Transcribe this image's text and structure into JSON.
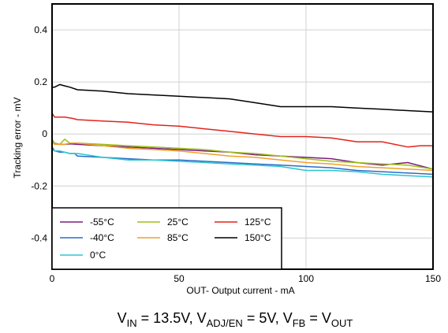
{
  "chart_data": {
    "type": "line",
    "xlabel_sub": "OUT",
    "xlabel_rest": "- Output current - mA",
    "ylabel": "Tracking error - mV",
    "xlim": [
      0,
      150
    ],
    "ylim": [
      -0.52,
      0.5
    ],
    "x_ticks": [
      0,
      50,
      100,
      150
    ],
    "x_tick_labels": [
      "0",
      "50",
      "100",
      "150"
    ],
    "y_ticks": [
      0.4,
      0.2,
      0,
      -0.2,
      -0.4
    ],
    "y_tick_labels": [
      "0.4",
      "0.2",
      "0",
      "-0.2",
      "-0.4"
    ],
    "grid": true,
    "legend_placement": "bottom-left",
    "series": [
      {
        "name": "-55°C",
        "color": "#7a1e7a",
        "x": [
          0,
          1,
          3,
          5,
          7,
          10,
          20,
          30,
          40,
          50,
          60,
          70,
          80,
          90,
          100,
          110,
          120,
          130,
          140,
          150
        ],
        "y": [
          -0.03,
          -0.035,
          -0.04,
          -0.04,
          -0.038,
          -0.04,
          -0.045,
          -0.05,
          -0.055,
          -0.06,
          -0.065,
          -0.07,
          -0.08,
          -0.085,
          -0.09,
          -0.095,
          -0.11,
          -0.12,
          -0.11,
          -0.135
        ]
      },
      {
        "name": "-40°C",
        "color": "#2a6cc8",
        "x": [
          0,
          1,
          3,
          5,
          7,
          9,
          10,
          20,
          30,
          40,
          50,
          60,
          70,
          80,
          90,
          100,
          110,
          120,
          130,
          140,
          150
        ],
        "y": [
          -0.05,
          -0.065,
          -0.07,
          -0.07,
          -0.075,
          -0.075,
          -0.085,
          -0.09,
          -0.095,
          -0.1,
          -0.1,
          -0.105,
          -0.11,
          -0.115,
          -0.12,
          -0.125,
          -0.13,
          -0.14,
          -0.145,
          -0.15,
          -0.155
        ]
      },
      {
        "name": "0°C",
        "color": "#2ec5d0",
        "x": [
          0,
          1,
          3,
          5,
          7,
          10,
          20,
          30,
          40,
          50,
          60,
          70,
          80,
          90,
          100,
          110,
          120,
          130,
          140,
          150
        ],
        "y": [
          -0.06,
          -0.065,
          -0.065,
          -0.07,
          -0.075,
          -0.075,
          -0.09,
          -0.1,
          -0.1,
          -0.105,
          -0.11,
          -0.115,
          -0.12,
          -0.125,
          -0.14,
          -0.14,
          -0.145,
          -0.155,
          -0.16,
          -0.165
        ]
      },
      {
        "name": "25°C",
        "color": "#9dbf1a",
        "x": [
          0,
          1,
          3,
          5,
          7,
          10,
          20,
          30,
          40,
          50,
          60,
          70,
          80,
          90,
          100,
          110,
          120,
          130,
          140,
          150
        ],
        "y": [
          -0.02,
          -0.035,
          -0.04,
          -0.02,
          -0.035,
          -0.035,
          -0.04,
          -0.045,
          -0.05,
          -0.055,
          -0.06,
          -0.07,
          -0.075,
          -0.085,
          -0.095,
          -0.105,
          -0.11,
          -0.115,
          -0.12,
          -0.135
        ]
      },
      {
        "name": "85°C",
        "color": "#f0a02a",
        "x": [
          0,
          1,
          3,
          5,
          7,
          10,
          20,
          30,
          40,
          50,
          60,
          70,
          80,
          90,
          100,
          110,
          120,
          130,
          140,
          150
        ],
        "y": [
          -0.03,
          -0.04,
          -0.04,
          -0.04,
          -0.035,
          -0.035,
          -0.045,
          -0.055,
          -0.06,
          -0.065,
          -0.075,
          -0.085,
          -0.09,
          -0.1,
          -0.11,
          -0.115,
          -0.125,
          -0.13,
          -0.135,
          -0.14
        ]
      },
      {
        "name": "125°C",
        "color": "#e0241c",
        "x": [
          0,
          1,
          2,
          5,
          8,
          10,
          20,
          30,
          40,
          50,
          60,
          70,
          80,
          90,
          100,
          110,
          120,
          130,
          140,
          145,
          150
        ],
        "y": [
          0.08,
          0.065,
          0.065,
          0.065,
          0.06,
          0.055,
          0.05,
          0.045,
          0.035,
          0.03,
          0.02,
          0.01,
          0.0,
          -0.01,
          -0.01,
          -0.015,
          -0.03,
          -0.03,
          -0.05,
          -0.045,
          -0.045
        ]
      },
      {
        "name": "150°C",
        "color": "#000000",
        "x": [
          0,
          1,
          3,
          5,
          7,
          10,
          20,
          30,
          40,
          50,
          60,
          70,
          80,
          90,
          100,
          110,
          120,
          130,
          140,
          150
        ],
        "y": [
          0.18,
          0.18,
          0.19,
          0.185,
          0.18,
          0.17,
          0.165,
          0.155,
          0.15,
          0.145,
          0.14,
          0.135,
          0.12,
          0.105,
          0.105,
          0.105,
          0.1,
          0.095,
          0.09,
          0.085
        ]
      }
    ]
  },
  "caption": {
    "v": "V",
    "in_sub": "IN",
    "part1": " = 13.5V, V",
    "adj_sub": "ADJ/EN",
    "part2": " = 5V, V",
    "fb_sub": "FB",
    "part3": " = V",
    "out_sub": "OUT"
  }
}
